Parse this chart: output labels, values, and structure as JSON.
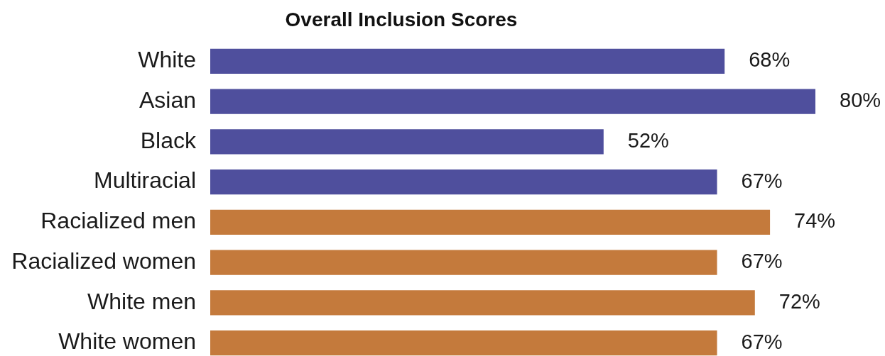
{
  "chart_data": {
    "type": "bar",
    "orientation": "horizontal",
    "title": "Overall Inclusion Scores",
    "categories": [
      "White",
      "Asian",
      "Black",
      "Multiracial",
      "Racialized men",
      "Racialized women",
      "White men",
      "White women"
    ],
    "values": [
      68,
      80,
      52,
      67,
      74,
      67,
      72,
      67
    ],
    "colors": [
      "#4f4f9d",
      "#4f4f9d",
      "#4f4f9d",
      "#4f4f9d",
      "#c47a3c",
      "#c47a3c",
      "#c47a3c",
      "#c47a3c"
    ],
    "value_labels": [
      "68%",
      "80%",
      "52%",
      "67%",
      "74%",
      "67%",
      "72%",
      "67%"
    ],
    "legend": false
  }
}
